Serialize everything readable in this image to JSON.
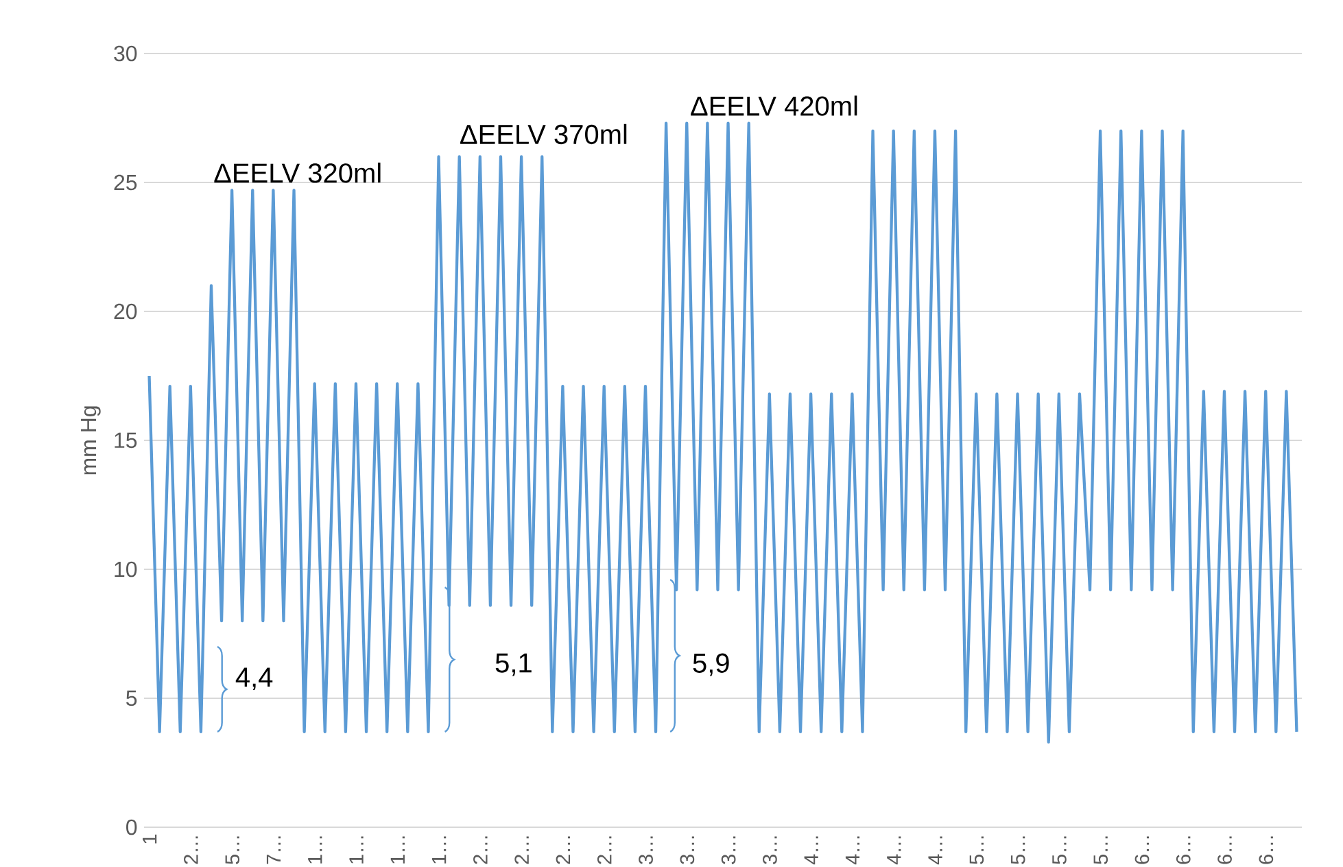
{
  "chart_data": {
    "type": "line",
    "ylabel": "mm Hg",
    "color": "#5b9bd5",
    "grid": "y",
    "ylim": [
      0,
      30
    ],
    "yticks": [
      0,
      5,
      10,
      15,
      20,
      25,
      30
    ],
    "categories": [
      "1",
      null,
      null,
      null,
      "2…",
      null,
      null,
      null,
      "5…",
      null,
      null,
      null,
      "7…",
      null,
      null,
      null,
      "1…",
      null,
      null,
      null,
      "1…",
      null,
      null,
      null,
      "1…",
      null,
      null,
      null,
      "1…",
      null,
      null,
      null,
      "2…",
      null,
      null,
      null,
      "2…",
      null,
      null,
      null,
      "2…",
      null,
      null,
      null,
      "2…",
      null,
      null,
      null,
      "3…",
      null,
      null,
      null,
      "3…",
      null,
      null,
      null,
      "3…",
      null,
      null,
      null,
      "3…",
      null,
      null,
      null,
      "4…",
      null,
      null,
      null,
      "4…",
      null,
      null,
      null,
      "4…",
      null,
      null,
      null,
      "4…",
      null,
      null,
      null,
      "5…",
      null,
      null,
      null,
      "5…",
      null,
      null,
      null,
      "5…",
      null,
      null,
      null,
      "5…",
      null,
      null,
      null,
      "6…",
      null,
      null,
      null,
      "6…",
      null,
      null,
      null,
      "6…",
      null,
      null,
      null,
      "6…",
      null,
      null,
      null
    ],
    "values": [
      17.5,
      3.7,
      17.1,
      3.7,
      17.1,
      3.7,
      21.0,
      8.0,
      24.7,
      8.0,
      24.7,
      8.0,
      24.7,
      8.0,
      24.7,
      3.7,
      17.2,
      3.7,
      17.2,
      3.7,
      17.2,
      3.7,
      17.2,
      3.7,
      17.2,
      3.7,
      17.2,
      3.7,
      26.0,
      8.6,
      26.0,
      8.6,
      26.0,
      8.6,
      26.0,
      8.6,
      26.0,
      8.6,
      26.0,
      3.7,
      17.1,
      3.7,
      17.1,
      3.7,
      17.1,
      3.7,
      17.1,
      3.7,
      17.1,
      3.7,
      27.3,
      9.2,
      27.3,
      9.2,
      27.3,
      9.2,
      27.3,
      9.2,
      27.3,
      3.7,
      16.8,
      3.7,
      16.8,
      3.7,
      16.8,
      3.7,
      16.8,
      3.7,
      16.8,
      3.7,
      27.0,
      9.2,
      27.0,
      9.2,
      27.0,
      9.2,
      27.0,
      9.2,
      27.0,
      3.7,
      16.8,
      3.7,
      16.8,
      3.7,
      16.8,
      3.7,
      16.8,
      3.3,
      16.8,
      3.7,
      16.8,
      9.2,
      27.0,
      9.2,
      27.0,
      9.2,
      27.0,
      9.2,
      27.0,
      9.2,
      27.0,
      3.7,
      16.9,
      3.7,
      16.9,
      3.7,
      16.9,
      3.7,
      16.9,
      3.7,
      16.9,
      3.7
    ],
    "annotations": [
      "ΔEELV 320ml",
      "ΔEELV 370ml",
      "ΔEELV 420ml",
      "4,4",
      "5,1",
      "5,9"
    ]
  }
}
